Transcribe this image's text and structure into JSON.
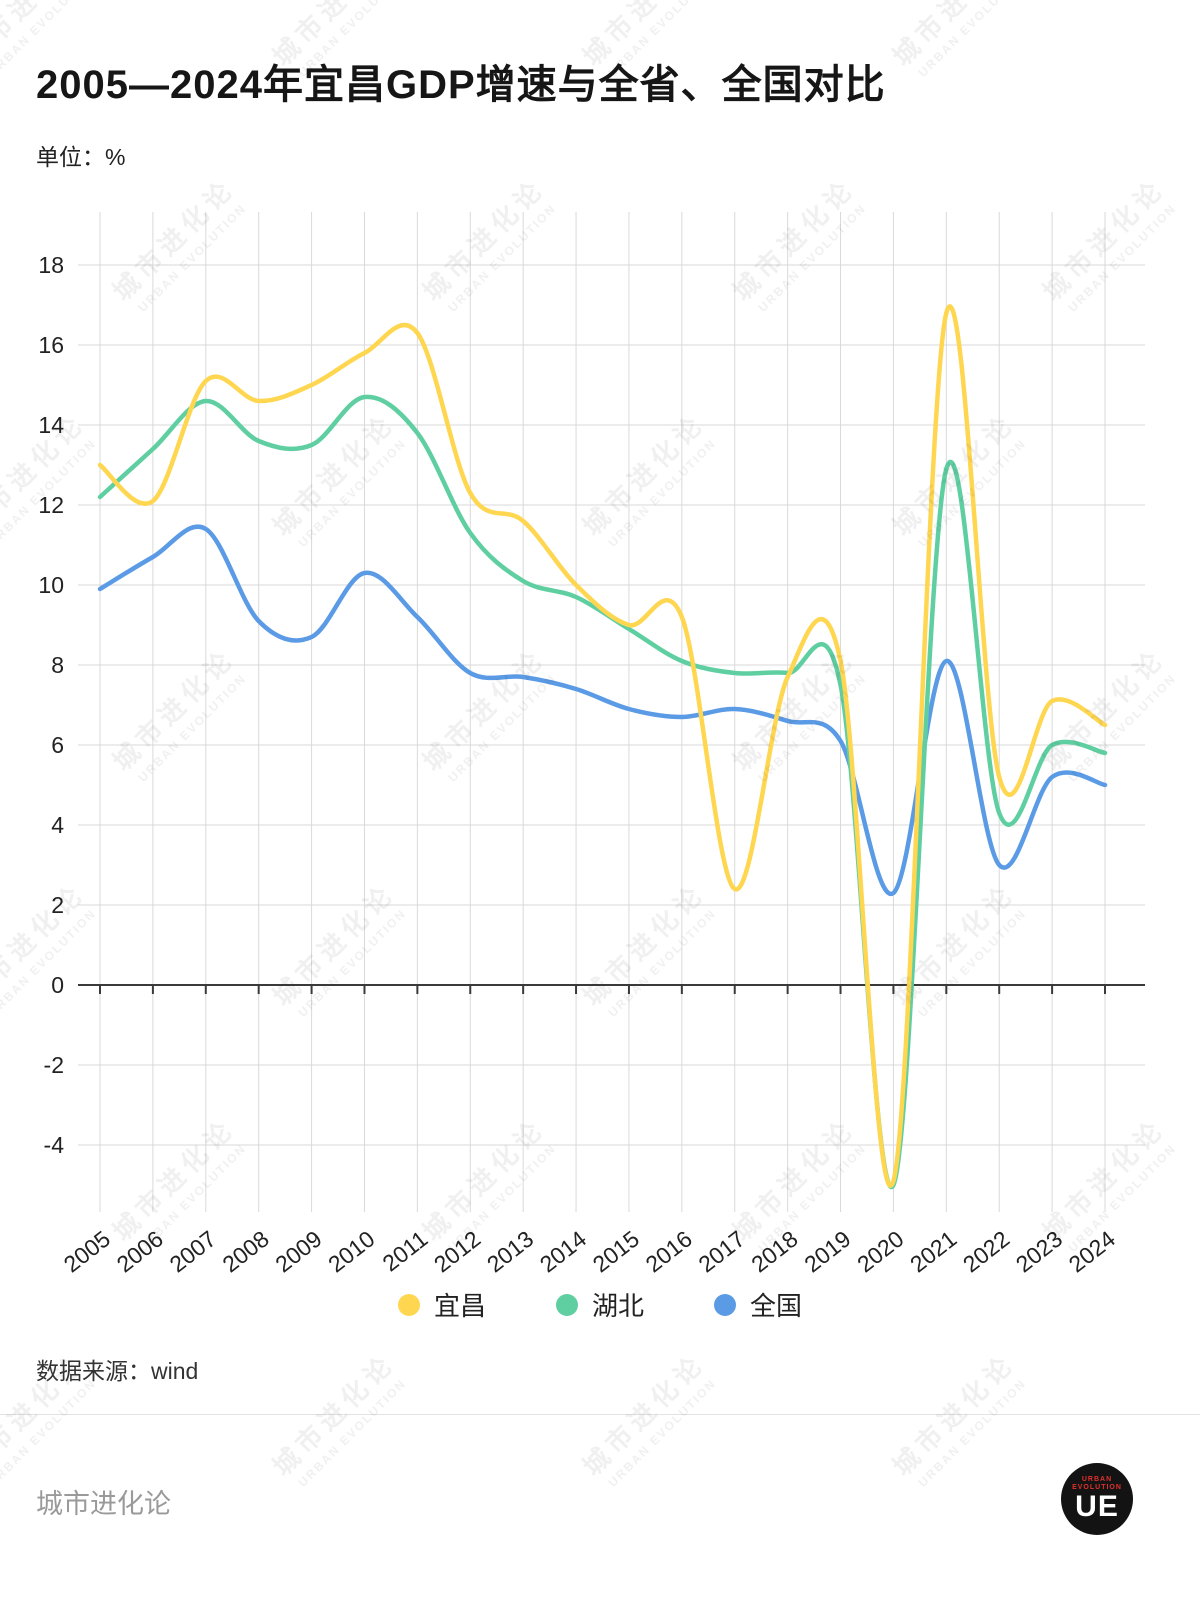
{
  "title": "2005—2024年宜昌GDP增速与全省、全国对比",
  "unit_label": "单位：%",
  "source": "数据来源：wind",
  "watermark": {
    "line1": "城市进化论",
    "line2": "URBAN EVOLUTION"
  },
  "footer": {
    "brand": "城市进化论",
    "logo_text": "UE",
    "logo_sub_line1": "URBAN",
    "logo_sub_line2": "EVOLUTION"
  },
  "chart_data": {
    "type": "line",
    "title": "2005—2024年宜昌GDP增速与全省、全国对比",
    "xlabel": "",
    "ylabel": "%",
    "x": [
      2005,
      2006,
      2007,
      2008,
      2009,
      2010,
      2011,
      2012,
      2013,
      2014,
      2015,
      2016,
      2017,
      2018,
      2019,
      2020,
      2021,
      2022,
      2023,
      2024
    ],
    "series": [
      {
        "key": "yichang",
        "name": "宜昌",
        "color": "#FFD650",
        "values": [
          13.0,
          12.1,
          15.1,
          14.6,
          15.0,
          15.8,
          16.3,
          12.3,
          11.6,
          10.0,
          9.0,
          9.2,
          2.4,
          7.7,
          8.1,
          -4.9,
          16.8,
          5.2,
          7.1,
          6.5
        ]
      },
      {
        "key": "hubei",
        "name": "湖北",
        "color": "#5FCFA2",
        "values": [
          12.2,
          13.4,
          14.6,
          13.6,
          13.5,
          14.7,
          13.8,
          11.3,
          10.1,
          9.7,
          8.9,
          8.1,
          7.8,
          7.8,
          7.5,
          -5.0,
          12.9,
          4.3,
          6.0,
          5.8
        ]
      },
      {
        "key": "national",
        "name": "全国",
        "color": "#5B9BE6",
        "values": [
          9.9,
          10.7,
          11.4,
          9.1,
          8.7,
          10.3,
          9.2,
          7.8,
          7.7,
          7.4,
          6.9,
          6.7,
          6.9,
          6.6,
          6.1,
          2.3,
          8.1,
          3.0,
          5.2,
          5.0
        ]
      }
    ],
    "y_ticks": [
      -4,
      -2,
      0,
      2,
      4,
      6,
      8,
      10,
      12,
      14,
      16,
      18
    ],
    "ylim": [
      -5.7,
      19.3
    ],
    "grid": true,
    "legend_position": "bottom",
    "smoothing": "spline"
  }
}
